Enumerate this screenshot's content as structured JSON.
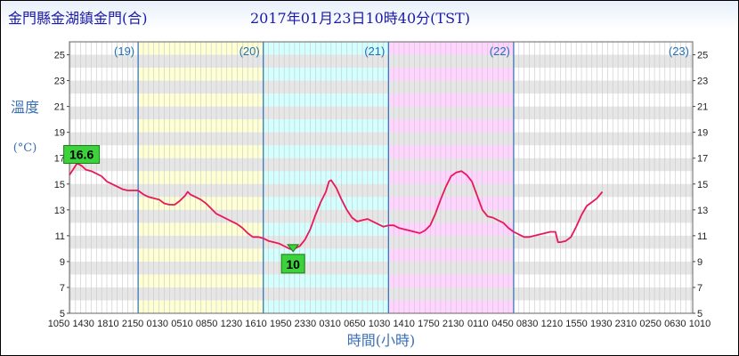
{
  "header": {
    "station": "金門縣金湖鎮金門(合)",
    "datetime": "2017年01月23日10時40分(TST)"
  },
  "chart_data": {
    "type": "line",
    "ylabel": "溫度",
    "yunit": "(°C)",
    "xlabel": "時間(小時)",
    "ylim": [
      5,
      26
    ],
    "yticks": [
      5,
      7,
      9,
      11,
      13,
      15,
      17,
      19,
      21,
      23,
      25
    ],
    "xlim": [
      10.83,
      130.33
    ],
    "xtick_labels": [
      "1050",
      "1430",
      "1810",
      "2150",
      "0130",
      "0510",
      "0850",
      "1230",
      "1610",
      "1950",
      "2330",
      "0310",
      "0650",
      "1030",
      "1410",
      "1750",
      "2130",
      "0110",
      "0450",
      "0830",
      "1210",
      "1550",
      "1930",
      "2310",
      "0250",
      "0630",
      "1010"
    ],
    "day_labels": [
      {
        "label": "(19)",
        "start": 10.83,
        "end": 24
      },
      {
        "label": "(20)",
        "start": 24,
        "end": 48
      },
      {
        "label": "(21)",
        "start": 48,
        "end": 72
      },
      {
        "label": "(22)",
        "start": 72,
        "end": 96
      },
      {
        "label": "(23)",
        "start": 96,
        "end": 130.33
      }
    ],
    "day_bands": [
      {
        "start": 24,
        "end": 48,
        "color": "#ffffcc"
      },
      {
        "start": 48,
        "end": 72,
        "color": "#ccffff"
      },
      {
        "start": 72,
        "end": 96,
        "color": "#ffccff"
      }
    ],
    "line_color": "#e8185a",
    "series": [
      {
        "points": [
          [
            10.83,
            15.7
          ],
          [
            11.5,
            16.1
          ],
          [
            12.3,
            16.6
          ],
          [
            13.2,
            16.4
          ],
          [
            14,
            16.1
          ],
          [
            15,
            16.0
          ],
          [
            16,
            15.8
          ],
          [
            17,
            15.6
          ],
          [
            18,
            15.2
          ],
          [
            19,
            15.0
          ],
          [
            20,
            14.8
          ],
          [
            21,
            14.6
          ],
          [
            22,
            14.5
          ],
          [
            23,
            14.5
          ],
          [
            24,
            14.5
          ],
          [
            25,
            14.2
          ],
          [
            26,
            14.0
          ],
          [
            27,
            13.9
          ],
          [
            28,
            13.8
          ],
          [
            29,
            13.5
          ],
          [
            30,
            13.4
          ],
          [
            31,
            13.4
          ],
          [
            32,
            13.7
          ],
          [
            33,
            14.1
          ],
          [
            33.5,
            14.4
          ],
          [
            34,
            14.2
          ],
          [
            35,
            14.0
          ],
          [
            36,
            13.8
          ],
          [
            37,
            13.5
          ],
          [
            38,
            13.1
          ],
          [
            39,
            12.7
          ],
          [
            40,
            12.5
          ],
          [
            41,
            12.3
          ],
          [
            42,
            12.1
          ],
          [
            43,
            11.9
          ],
          [
            44,
            11.6
          ],
          [
            45,
            11.2
          ],
          [
            46,
            10.9
          ],
          [
            47,
            10.9
          ],
          [
            48,
            10.8
          ],
          [
            49,
            10.6
          ],
          [
            50,
            10.5
          ],
          [
            51,
            10.4
          ],
          [
            52,
            10.2
          ],
          [
            53,
            10.0
          ],
          [
            53.7,
            9.9
          ],
          [
            54,
            10.0
          ],
          [
            55,
            10.2
          ],
          [
            56,
            10.7
          ],
          [
            57,
            11.5
          ],
          [
            58,
            12.6
          ],
          [
            59,
            13.6
          ],
          [
            60,
            14.4
          ],
          [
            60.6,
            15.2
          ],
          [
            61,
            15.3
          ],
          [
            62,
            14.7
          ],
          [
            63,
            13.8
          ],
          [
            64,
            13.0
          ],
          [
            65,
            12.4
          ],
          [
            66,
            12.1
          ],
          [
            67,
            12.2
          ],
          [
            68,
            12.3
          ],
          [
            69,
            12.1
          ],
          [
            70,
            11.9
          ],
          [
            71,
            11.7
          ],
          [
            72,
            11.8
          ],
          [
            73,
            11.8
          ],
          [
            74,
            11.6
          ],
          [
            75,
            11.5
          ],
          [
            76,
            11.4
          ],
          [
            77,
            11.3
          ],
          [
            78,
            11.2
          ],
          [
            79,
            11.4
          ],
          [
            80,
            11.8
          ],
          [
            81,
            12.7
          ],
          [
            82,
            13.8
          ],
          [
            83,
            14.8
          ],
          [
            84,
            15.6
          ],
          [
            85,
            15.9
          ],
          [
            86,
            16.0
          ],
          [
            87,
            15.7
          ],
          [
            88,
            15.2
          ],
          [
            89,
            14.1
          ],
          [
            90,
            13.0
          ],
          [
            91,
            12.5
          ],
          [
            92,
            12.4
          ],
          [
            93,
            12.2
          ],
          [
            94,
            12.0
          ],
          [
            95,
            11.6
          ],
          [
            96,
            11.3
          ],
          [
            97,
            11.1
          ],
          [
            98,
            10.9
          ],
          [
            99,
            10.9
          ],
          [
            100,
            11.0
          ],
          [
            101,
            11.1
          ],
          [
            102,
            11.2
          ],
          [
            103,
            11.3
          ],
          [
            104,
            11.3
          ],
          [
            104.5,
            10.5
          ],
          [
            105,
            10.5
          ],
          [
            106,
            10.6
          ],
          [
            107,
            10.9
          ],
          [
            108,
            11.7
          ],
          [
            109,
            12.6
          ],
          [
            110,
            13.3
          ],
          [
            111,
            13.6
          ],
          [
            112,
            13.9
          ],
          [
            113,
            14.4
          ]
        ]
      }
    ],
    "annotations": [
      {
        "label": "16.6",
        "x": 12.3,
        "y": 16.6,
        "kind": "max",
        "color": "#3cd23c"
      },
      {
        "label": "10",
        "x": 53.7,
        "y": 9.9,
        "kind": "min",
        "color": "#3cd23c"
      }
    ]
  }
}
